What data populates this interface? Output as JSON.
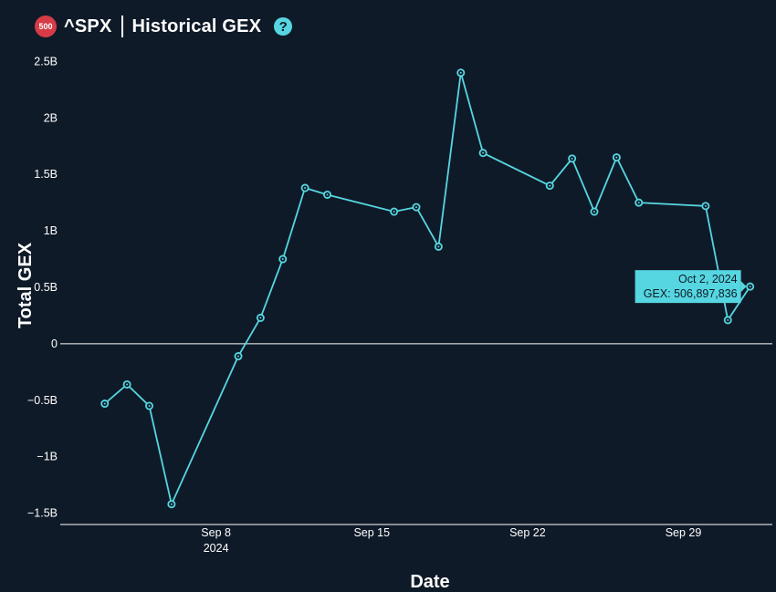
{
  "header": {
    "badge": "500",
    "symbol": "^SPX",
    "title": "Historical GEX",
    "help_icon": "?"
  },
  "colors": {
    "background": "#0f1a28",
    "line": "#56d6e0",
    "badge": "#d63b47",
    "text": "#ffffff"
  },
  "chart_data": {
    "type": "line",
    "title": "^SPX | Historical GEX",
    "xlabel": "Date",
    "ylabel": "Total GEX",
    "ylim": [
      -1.6,
      2.6
    ],
    "yticks": [
      -1.5,
      -1,
      -0.5,
      0,
      0.5,
      1,
      1.5,
      2,
      2.5
    ],
    "ytick_labels": [
      "−1.5B",
      "−1B",
      "−0.5B",
      "0",
      "0.5B",
      "1B",
      "1.5B",
      "2B",
      "2.5B"
    ],
    "xticks": [
      {
        "x": "2024-09-08",
        "label": "Sep 8",
        "sublabel": "2024"
      },
      {
        "x": "2024-09-15",
        "label": "Sep 15",
        "sublabel": ""
      },
      {
        "x": "2024-09-22",
        "label": "Sep 22",
        "sublabel": ""
      },
      {
        "x": "2024-09-29",
        "label": "Sep 29",
        "sublabel": ""
      }
    ],
    "xlim": [
      "2024-09-02",
      "2024-10-02"
    ],
    "series": [
      {
        "points": [
          {
            "x": "2024-09-03",
            "y": -0.53
          },
          {
            "x": "2024-09-04",
            "y": -0.36
          },
          {
            "x": "2024-09-05",
            "y": -0.55
          },
          {
            "x": "2024-09-06",
            "y": -1.42
          },
          {
            "x": "2024-09-09",
            "y": -0.11
          },
          {
            "x": "2024-09-10",
            "y": 0.23
          },
          {
            "x": "2024-09-11",
            "y": 0.75
          },
          {
            "x": "2024-09-12",
            "y": 1.38
          },
          {
            "x": "2024-09-13",
            "y": 1.32
          },
          {
            "x": "2024-09-16",
            "y": 1.17
          },
          {
            "x": "2024-09-17",
            "y": 1.21
          },
          {
            "x": "2024-09-18",
            "y": 0.86
          },
          {
            "x": "2024-09-19",
            "y": 2.4
          },
          {
            "x": "2024-09-20",
            "y": 1.69
          },
          {
            "x": "2024-09-23",
            "y": 1.4
          },
          {
            "x": "2024-09-24",
            "y": 1.64
          },
          {
            "x": "2024-09-25",
            "y": 1.17
          },
          {
            "x": "2024-09-26",
            "y": 1.65
          },
          {
            "x": "2024-09-27",
            "y": 1.25
          },
          {
            "x": "2024-09-30",
            "y": 1.22
          },
          {
            "x": "2024-10-01",
            "y": 0.21
          },
          {
            "x": "2024-10-02",
            "y": 0.506897836
          }
        ]
      }
    ],
    "tooltip": {
      "date": "Oct 2, 2024",
      "value": "GEX: 506,897,836",
      "x": "2024-10-02"
    }
  }
}
